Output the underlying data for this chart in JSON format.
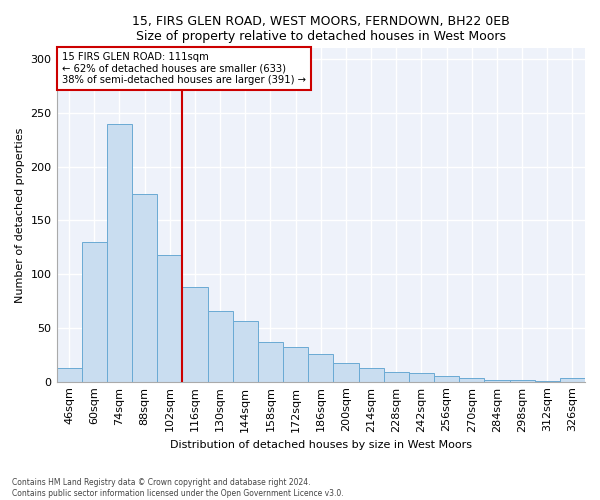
{
  "title1": "15, FIRS GLEN ROAD, WEST MOORS, FERNDOWN, BH22 0EB",
  "title2": "Size of property relative to detached houses in West Moors",
  "xlabel": "Distribution of detached houses by size in West Moors",
  "ylabel": "Number of detached properties",
  "bar_labels": [
    "46sqm",
    "60sqm",
    "74sqm",
    "88sqm",
    "102sqm",
    "116sqm",
    "130sqm",
    "144sqm",
    "158sqm",
    "172sqm",
    "186sqm",
    "200sqm",
    "214sqm",
    "228sqm",
    "242sqm",
    "256sqm",
    "270sqm",
    "284sqm",
    "298sqm",
    "312sqm",
    "326sqm"
  ],
  "bar_values": [
    13,
    130,
    240,
    175,
    118,
    88,
    66,
    56,
    37,
    32,
    26,
    17,
    13,
    9,
    8,
    5,
    3,
    2,
    2,
    1,
    3
  ],
  "bar_color": "#c9ddf0",
  "bar_edge_color": "#6aaad4",
  "property_label": "15 FIRS GLEN ROAD: 111sqm",
  "annotation_line1": "← 62% of detached houses are smaller (633)",
  "annotation_line2": "38% of semi-detached houses are larger (391) →",
  "vline_color": "#cc0000",
  "vline_x": 4.5,
  "box_color": "#cc0000",
  "ylim": [
    0,
    310
  ],
  "yticks": [
    0,
    50,
    100,
    150,
    200,
    250,
    300
  ],
  "footnote1": "Contains HM Land Registry data © Crown copyright and database right 2024.",
  "footnote2": "Contains public sector information licensed under the Open Government Licence v3.0.",
  "bg_color": "#ffffff",
  "plot_bg_color": "#eef2fa",
  "grid_color": "#ffffff",
  "spine_color": "#aaaaaa"
}
